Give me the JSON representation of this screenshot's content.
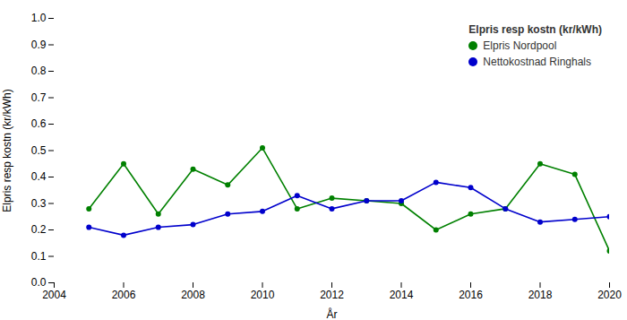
{
  "chart_data": {
    "type": "line",
    "x": [
      2005,
      2006,
      2007,
      2008,
      2009,
      2010,
      2011,
      2012,
      2013,
      2014,
      2015,
      2016,
      2017,
      2018,
      2019,
      2020
    ],
    "series": [
      {
        "name": "Elpris Nordpool",
        "color": "#008000",
        "values": [
          0.28,
          0.45,
          0.26,
          0.43,
          0.37,
          0.51,
          0.28,
          0.32,
          0.31,
          0.3,
          0.2,
          0.26,
          0.28,
          0.45,
          0.41,
          0.12
        ]
      },
      {
        "name": "Nettokostnad Ringhals",
        "color": "#0000CC",
        "values": [
          0.21,
          0.18,
          0.21,
          0.22,
          0.26,
          0.27,
          0.33,
          0.28,
          0.31,
          0.31,
          0.38,
          0.36,
          0.28,
          0.23,
          0.24,
          0.25
        ]
      }
    ],
    "xlabel": "År",
    "ylabel": "Elpris resp kostn (kr/kWh)",
    "legend_title": "Elpris resp kostn (kr/kWh)",
    "xlim": [
      2004,
      2020
    ],
    "xticks": [
      2004,
      2006,
      2008,
      2010,
      2012,
      2014,
      2016,
      2018,
      2020
    ],
    "ylim": [
      0.0,
      1.0
    ],
    "yticks": [
      {
        "value": 0.0,
        "label": "0.0"
      },
      0.1,
      0.2,
      0.3,
      0.4,
      0.5,
      0.6,
      0.7,
      0.8,
      0.9,
      {
        "value": 1.0,
        "label": "1.0"
      }
    ],
    "marker": "circle",
    "grid": false,
    "legend": "upper right"
  }
}
